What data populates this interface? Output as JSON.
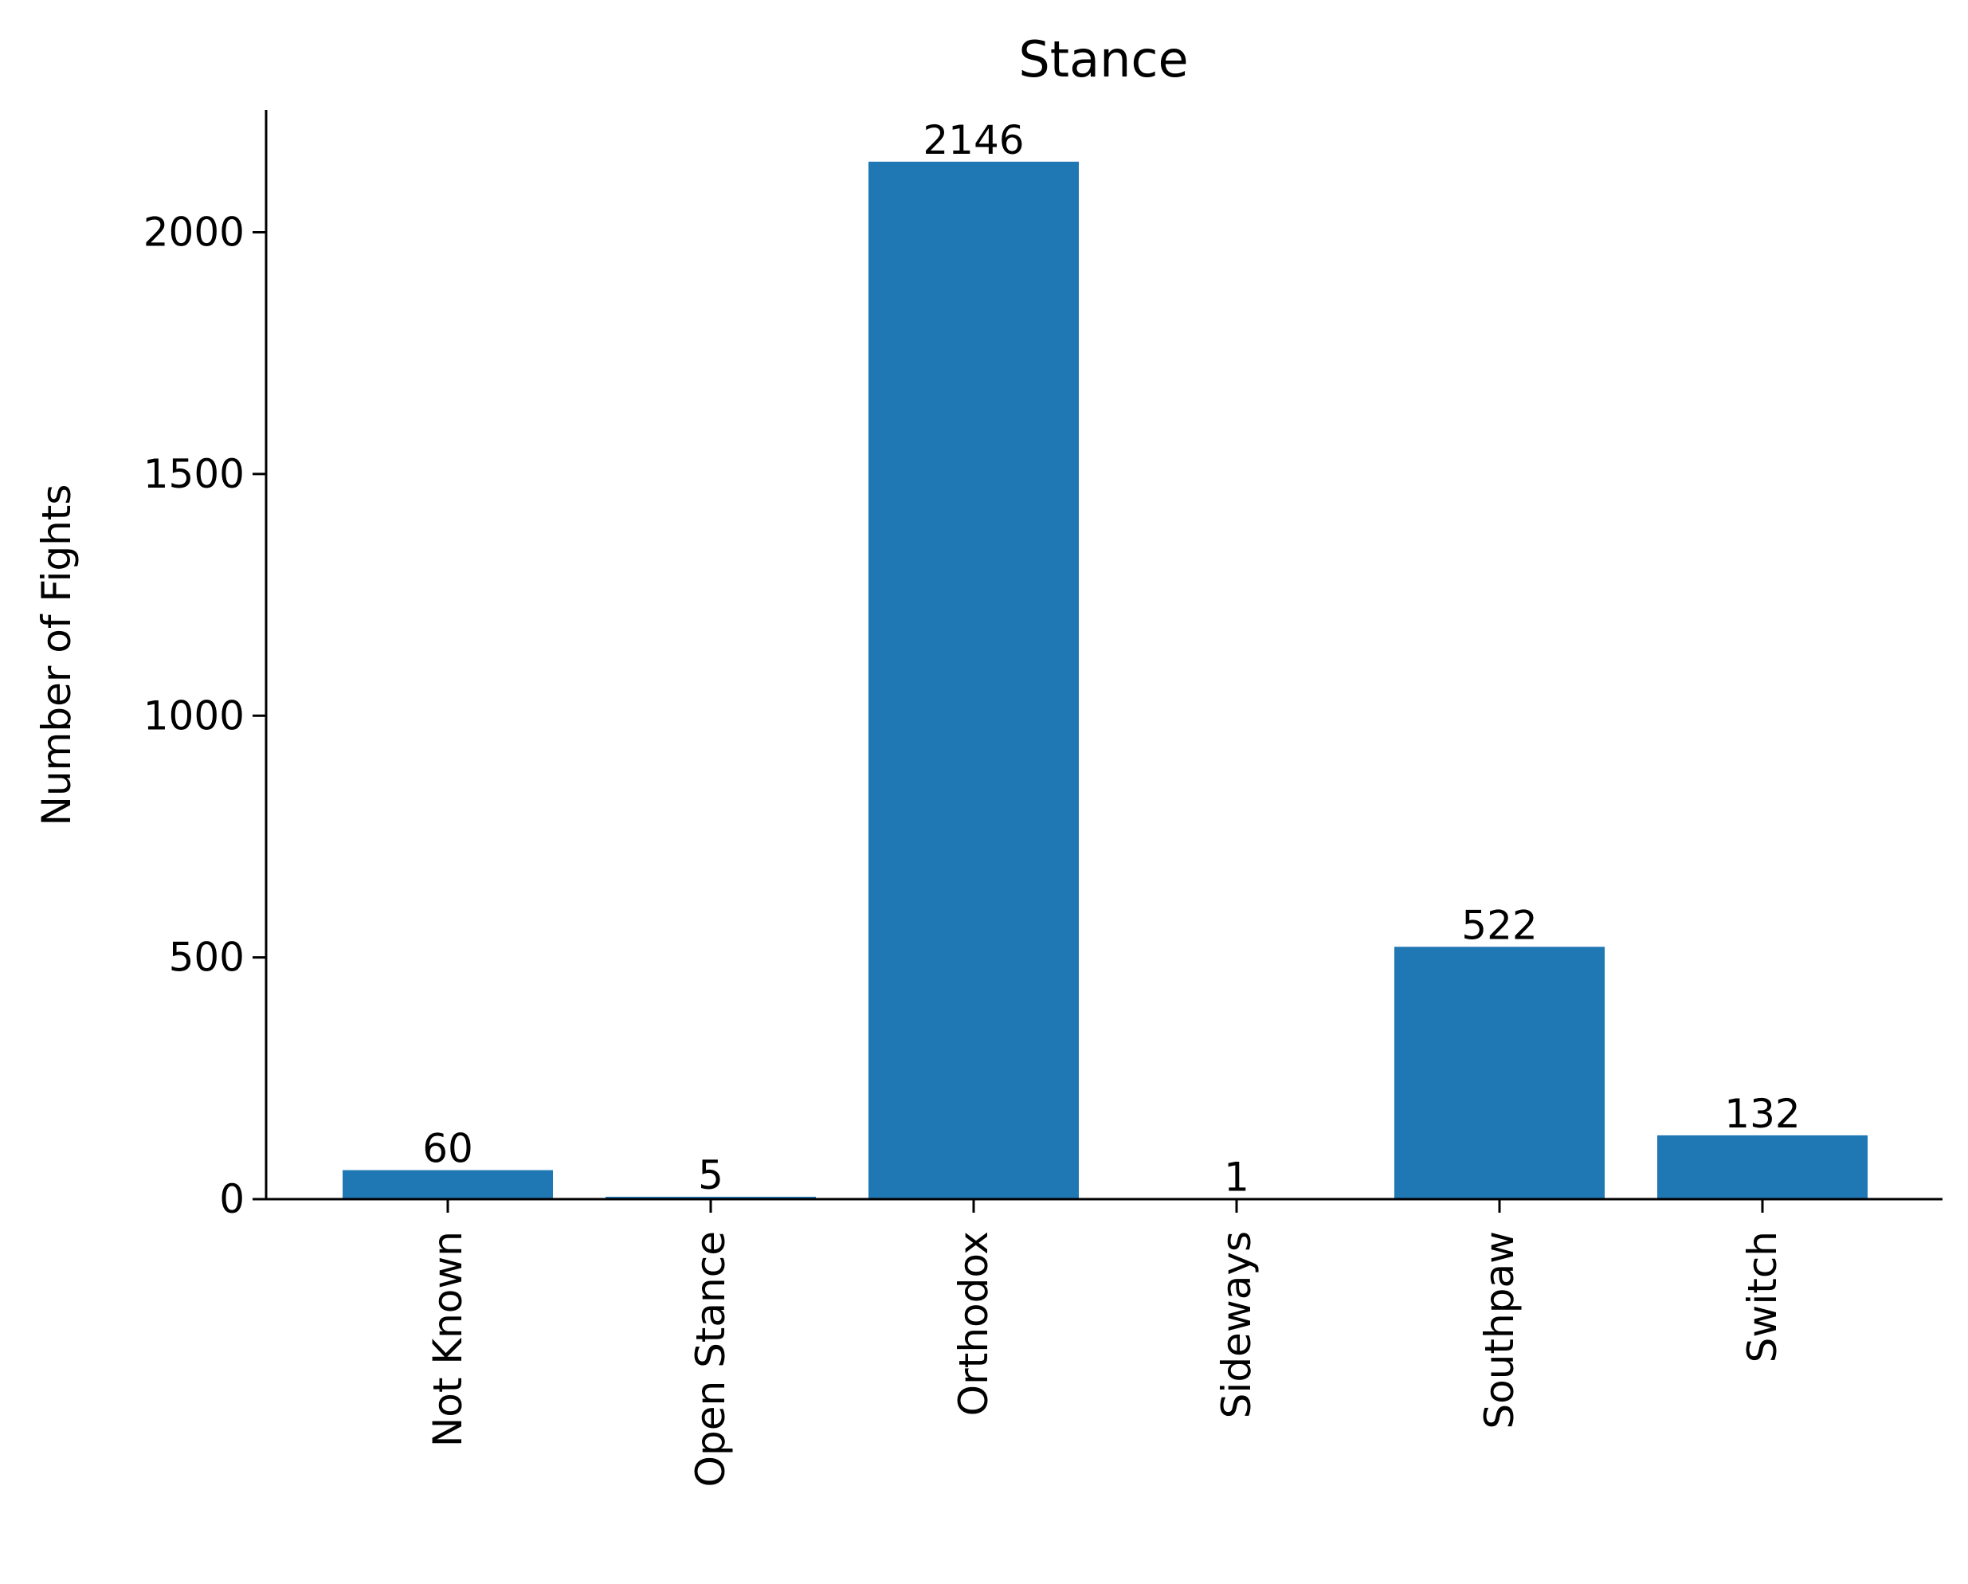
{
  "chart_data": {
    "type": "bar",
    "title": "Stance",
    "xlabel": "",
    "ylabel": "Number of Fights",
    "categories": [
      "Not Known",
      "Open Stance",
      "Orthodox",
      "Sideways",
      "Southpaw",
      "Switch"
    ],
    "values": [
      60,
      5,
      2146,
      1,
      522,
      132
    ],
    "data_labels": [
      "60",
      "5",
      "2146",
      "1",
      "522",
      "132"
    ],
    "yticks": [
      0,
      500,
      1000,
      1500,
      2000
    ],
    "ytick_labels": [
      "0",
      "500",
      "1000",
      "1500",
      "2000"
    ],
    "ylim": [
      0,
      2253
    ],
    "grid": false,
    "bar_color": "#1f77b4",
    "spines": "left-bottom"
  }
}
